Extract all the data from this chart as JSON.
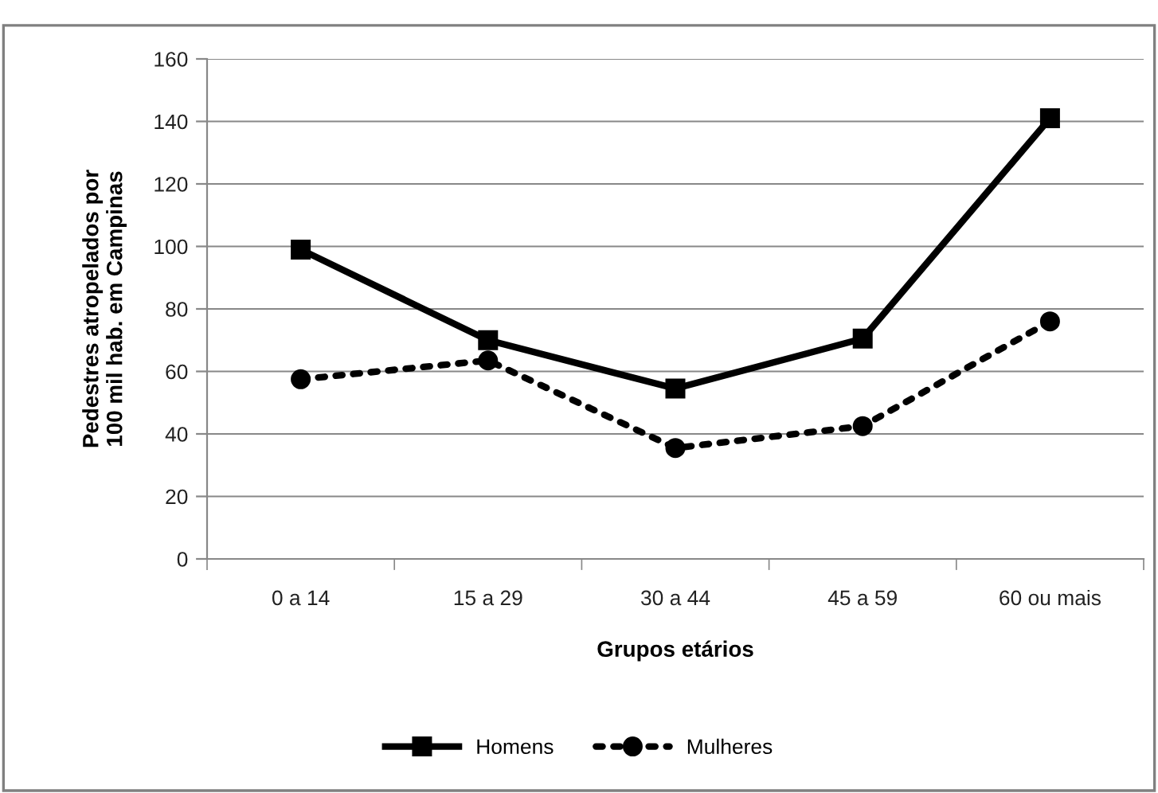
{
  "chart_data": {
    "type": "line",
    "xlabel": "Grupos etários",
    "ylabel": "Pedestres atropelados por\n100 mil hab. em Campinas",
    "categories": [
      "0 a 14",
      "15 a 29",
      "30 a 44",
      "45 a 59",
      "60 ou mais"
    ],
    "series": [
      {
        "name": "Homens",
        "color": "#000000",
        "values": [
          99,
          70,
          54.5,
          70.5,
          141
        ],
        "marker": "square",
        "line_style": "solid"
      },
      {
        "name": "Mulheres",
        "color": "#000000",
        "values": [
          57.5,
          63.5,
          35.5,
          42.5,
          76
        ],
        "marker": "circle",
        "line_style": "dotted"
      }
    ],
    "ylim": [
      0,
      160
    ],
    "yticks": [
      0,
      20,
      40,
      60,
      80,
      100,
      120,
      140,
      160
    ],
    "grid": "y",
    "legend": "bottom"
  }
}
